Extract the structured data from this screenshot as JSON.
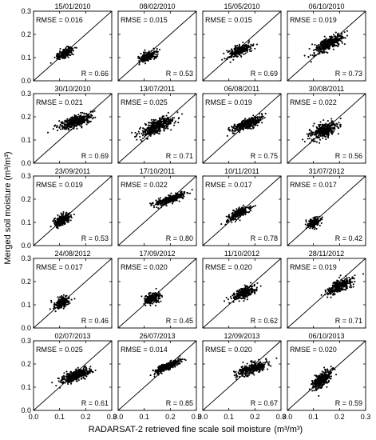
{
  "chart_data": {
    "type": "scatter",
    "layout": {
      "rows": 5,
      "cols": 4
    },
    "xlabel_text": "RADARSAT-2 retrieved fine scale soil moisture",
    "ylabel_text": "Merged soil moisture",
    "unit_text": "(m³/m³)",
    "xlim": [
      0.0,
      0.3
    ],
    "ylim": [
      0.0,
      0.3
    ],
    "xticks": [
      "0.0",
      "0.1",
      "0.2",
      "0.3"
    ],
    "yticks": [
      "0.0",
      "0.1",
      "0.2",
      "0.3"
    ],
    "reference_line": "1:1",
    "point_color": "#000000",
    "panels": [
      {
        "date": "15/01/2010",
        "rmse": "RMSE = 0.016",
        "r": "R = 0.66",
        "cluster": {
          "cx": 0.12,
          "cy": 0.12,
          "sx": 0.016,
          "sy": 0.012,
          "rho": 0.66,
          "n": 230
        }
      },
      {
        "date": "08/02/2010",
        "rmse": "RMSE = 0.015",
        "r": "R = 0.53",
        "cluster": {
          "cx": 0.115,
          "cy": 0.105,
          "sx": 0.017,
          "sy": 0.012,
          "rho": 0.53,
          "n": 220
        }
      },
      {
        "date": "15/05/2010",
        "rmse": "RMSE = 0.015",
        "r": "R = 0.69",
        "cluster": {
          "cx": 0.14,
          "cy": 0.13,
          "sx": 0.022,
          "sy": 0.014,
          "rho": 0.69,
          "n": 280
        }
      },
      {
        "date": "06/10/2010",
        "rmse": "RMSE = 0.019",
        "r": "R = 0.73",
        "cluster": {
          "cx": 0.16,
          "cy": 0.16,
          "sx": 0.028,
          "sy": 0.02,
          "rho": 0.73,
          "n": 380
        }
      },
      {
        "date": "30/10/2010",
        "rmse": "RMSE = 0.021",
        "r": "R = 0.69",
        "cluster": {
          "cx": 0.16,
          "cy": 0.18,
          "sx": 0.033,
          "sy": 0.017,
          "rho": 0.69,
          "n": 380
        }
      },
      {
        "date": "13/07/2011",
        "rmse": "RMSE = 0.025",
        "r": "R = 0.71",
        "cluster": {
          "cx": 0.15,
          "cy": 0.16,
          "sx": 0.033,
          "sy": 0.022,
          "rho": 0.71,
          "n": 420
        }
      },
      {
        "date": "06/08/2011",
        "rmse": "RMSE = 0.019",
        "r": "R = 0.75",
        "cluster": {
          "cx": 0.17,
          "cy": 0.17,
          "sx": 0.03,
          "sy": 0.017,
          "rho": 0.75,
          "n": 340
        }
      },
      {
        "date": "30/08/2011",
        "rmse": "RMSE = 0.022",
        "r": "R = 0.56",
        "cluster": {
          "cx": 0.14,
          "cy": 0.14,
          "sx": 0.026,
          "sy": 0.018,
          "rho": 0.56,
          "n": 320
        }
      },
      {
        "date": "23/09/2011",
        "rmse": "RMSE = 0.019",
        "r": "R = 0.53",
        "cluster": {
          "cx": 0.11,
          "cy": 0.11,
          "sx": 0.015,
          "sy": 0.014,
          "rho": 0.53,
          "n": 260
        }
      },
      {
        "date": "17/10/2011",
        "rmse": "RMSE = 0.022",
        "r": "R = 0.80",
        "cluster": {
          "cx": 0.2,
          "cy": 0.2,
          "sx": 0.03,
          "sy": 0.014,
          "rho": 0.8,
          "n": 300
        }
      },
      {
        "date": "10/11/2011",
        "rmse": "RMSE = 0.017",
        "r": "R = 0.78",
        "cluster": {
          "cx": 0.14,
          "cy": 0.14,
          "sx": 0.022,
          "sy": 0.016,
          "rho": 0.78,
          "n": 240
        }
      },
      {
        "date": "31/07/2012",
        "rmse": "RMSE = 0.017",
        "r": "R = 0.42",
        "cluster": {
          "cx": 0.1,
          "cy": 0.1,
          "sx": 0.012,
          "sy": 0.011,
          "rho": 0.42,
          "n": 170
        }
      },
      {
        "date": "24/08/2012",
        "rmse": "RMSE = 0.017",
        "r": "R = 0.46",
        "cluster": {
          "cx": 0.11,
          "cy": 0.11,
          "sx": 0.014,
          "sy": 0.013,
          "rho": 0.46,
          "n": 200
        }
      },
      {
        "date": "17/09/2012",
        "rmse": "RMSE = 0.020",
        "r": "R = 0.45",
        "cluster": {
          "cx": 0.13,
          "cy": 0.13,
          "sx": 0.016,
          "sy": 0.013,
          "rho": 0.45,
          "n": 230
        }
      },
      {
        "date": "11/10/2012",
        "rmse": "RMSE = 0.020",
        "r": "R = 0.62",
        "cluster": {
          "cx": 0.16,
          "cy": 0.15,
          "sx": 0.022,
          "sy": 0.014,
          "rho": 0.62,
          "n": 300
        }
      },
      {
        "date": "28/11/2012",
        "rmse": "RMSE = 0.019",
        "r": "R = 0.71",
        "cluster": {
          "cx": 0.2,
          "cy": 0.18,
          "sx": 0.025,
          "sy": 0.018,
          "rho": 0.71,
          "n": 320
        }
      },
      {
        "date": "02/07/2013",
        "rmse": "RMSE = 0.025",
        "r": "R = 0.61",
        "cluster": {
          "cx": 0.16,
          "cy": 0.15,
          "sx": 0.028,
          "sy": 0.015,
          "rho": 0.61,
          "n": 380
        }
      },
      {
        "date": "26/07/2013",
        "rmse": "RMSE = 0.014",
        "r": "R = 0.85",
        "cluster": {
          "cx": 0.19,
          "cy": 0.19,
          "sx": 0.025,
          "sy": 0.015,
          "rho": 0.85,
          "n": 300
        }
      },
      {
        "date": "12/09/2013",
        "rmse": "RMSE = 0.020",
        "r": "R = 0.67",
        "cluster": {
          "cx": 0.19,
          "cy": 0.18,
          "sx": 0.03,
          "sy": 0.016,
          "rho": 0.67,
          "n": 360
        }
      },
      {
        "date": "06/10/2013",
        "rmse": "RMSE = 0.020",
        "r": "R = 0.59",
        "cluster": {
          "cx": 0.13,
          "cy": 0.13,
          "sx": 0.017,
          "sy": 0.02,
          "rho": 0.59,
          "n": 330
        }
      }
    ]
  }
}
